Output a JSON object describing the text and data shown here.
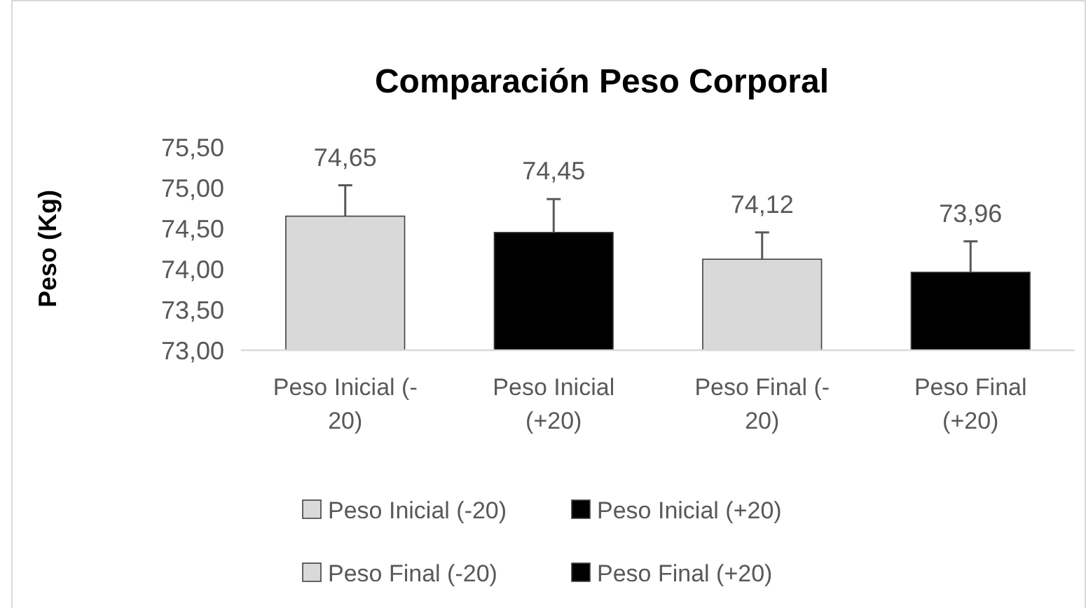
{
  "chart_data": {
    "type": "bar",
    "title": "Comparación Peso Corporal",
    "ylabel": "Peso (Kg)",
    "categories": [
      "Peso Inicial (-20)",
      "Peso Inicial (+20)",
      "Peso Final (-20)",
      "Peso Final (+20)"
    ],
    "series": [
      {
        "name": "Peso Inicial (-20)",
        "color": "#d9d9d9",
        "values": [
          74.65,
          null,
          null,
          null
        ],
        "value_labels": [
          "74,65",
          null,
          null,
          null
        ],
        "errors": [
          [
            74.65,
            75.03
          ],
          null,
          null,
          null
        ]
      },
      {
        "name": "Peso Inicial (+20)",
        "color": "#000000",
        "values": [
          null,
          74.45,
          null,
          null
        ],
        "value_labels": [
          null,
          "74,45",
          null,
          null
        ],
        "errors": [
          null,
          [
            74.45,
            74.86
          ],
          null,
          null
        ]
      },
      {
        "name": "Peso Final (-20)",
        "color": "#d9d9d9",
        "values": [
          null,
          null,
          74.12,
          null
        ],
        "value_labels": [
          null,
          null,
          "74,12",
          null
        ],
        "errors": [
          null,
          null,
          [
            74.12,
            74.45
          ],
          null
        ]
      },
      {
        "name": "Peso Final (+20)",
        "color": "#000000",
        "values": [
          null,
          null,
          null,
          73.96
        ],
        "value_labels": [
          null,
          null,
          null,
          "73,96"
        ],
        "errors": [
          null,
          null,
          null,
          [
            73.96,
            74.34
          ]
        ]
      }
    ],
    "ylim": [
      73,
      75.5
    ],
    "yticks": [
      {
        "value": 73,
        "label": "73,00"
      },
      {
        "value": 73.5,
        "label": "73,50"
      },
      {
        "value": 74,
        "label": "74,00"
      },
      {
        "value": 74.5,
        "label": "74,50"
      },
      {
        "value": 75,
        "label": "75,00"
      },
      {
        "value": 75.5,
        "label": "75,50"
      }
    ],
    "grid": false,
    "legend": "bottom"
  }
}
